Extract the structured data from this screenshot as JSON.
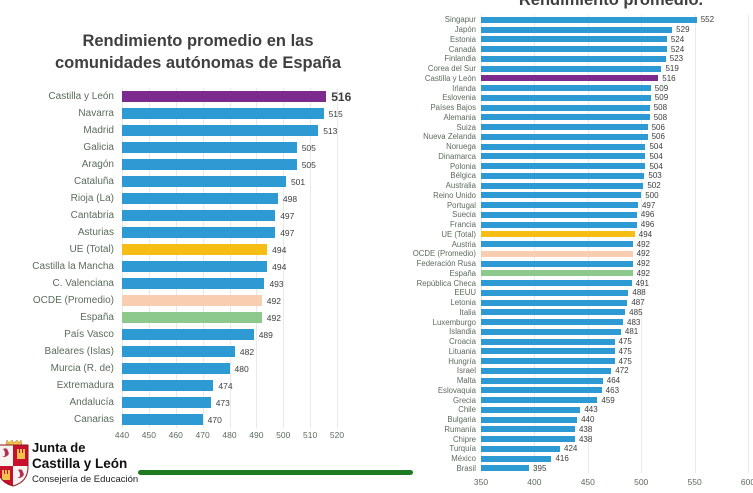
{
  "colors": {
    "bar_default": "#2d9ad3",
    "bar_castilla": "#7d2a8f",
    "bar_ue": "#f6be15",
    "bar_ocde": "#f9cdb0",
    "bar_espana": "#8dc98d",
    "grid": "#e9e9e9",
    "title_text": "#3f3f3f",
    "label_text": "#5c6c5c",
    "value_text": "#3d3d3d",
    "logo_rule_green": "#1e7a20",
    "shield_red": "#c8102e",
    "shield_gold": "#f2c14e"
  },
  "logo": {
    "line1": "Junta de",
    "line2": "Castilla y León",
    "line3": "Consejería de Educación"
  },
  "chart_data": [
    {
      "type": "bar",
      "orientation": "horizontal",
      "title": "Rendimiento promedio en las comunidades autónomas de España",
      "xlim": [
        440,
        520
      ],
      "xticks": [
        440,
        450,
        460,
        470,
        480,
        490,
        500,
        510,
        520
      ],
      "grid": true,
      "legend": "none",
      "emphasized_category": "Castilla y León",
      "categories": [
        "Castilla y León",
        "Navarra",
        "Madrid",
        "Galicia",
        "Aragón",
        "Cataluña",
        "Rioja (La)",
        "Cantabria",
        "Asturias",
        "UE (Total)",
        "Castilla la Mancha",
        "C. Valenciana",
        "OCDE (Promedio)",
        "España",
        "País Vasco",
        "Baleares (Islas)",
        "Murcia (R. de)",
        "Extremadura",
        "Andalucía",
        "Canarias"
      ],
      "values": [
        516,
        515,
        513,
        505,
        505,
        501,
        498,
        497,
        497,
        494,
        494,
        493,
        492,
        492,
        489,
        482,
        480,
        474,
        473,
        470
      ],
      "color_overrides": {
        "Castilla y León": "#7d2a8f",
        "UE (Total)": "#f6be15",
        "OCDE (Promedio)": "#f9cdb0",
        "España": "#8dc98d"
      }
    },
    {
      "type": "bar",
      "orientation": "horizontal",
      "title": "Rendimiento promedio.",
      "title_clipped_at_top": true,
      "xlim": [
        350,
        600
      ],
      "xticks": [
        350,
        400,
        450,
        500,
        550,
        600
      ],
      "grid": true,
      "legend": "none",
      "categories": [
        "Singapur",
        "Japón",
        "Estonia",
        "Canadá",
        "Finlandia",
        "Corea del Sur",
        "Castilla y León",
        "Irlanda",
        "Eslovenia",
        "Países Bajos",
        "Alemania",
        "Suiza",
        "Nueva Zelanda",
        "Noruega",
        "Dinamarca",
        "Polonia",
        "Bélgica",
        "Australia",
        "Reino Unido",
        "Portugal",
        "Suecia",
        "Francia",
        "UE (Total)",
        "Austria",
        "OCDE (Promedio)",
        "Federación Rusa",
        "España",
        "República Checa",
        "EEUU",
        "Letonia",
        "Italia",
        "Luxemburgo",
        "Islandia",
        "Croacia",
        "Lituania",
        "Hungría",
        "Israel",
        "Malta",
        "Eslovaquia",
        "Grecia",
        "Chile",
        "Bulgaria",
        "Rumanía",
        "Chipre",
        "Turquía",
        "México",
        "Brasil"
      ],
      "values": [
        552,
        529,
        524,
        524,
        523,
        519,
        516,
        509,
        509,
        508,
        508,
        506,
        506,
        504,
        504,
        504,
        503,
        502,
        500,
        497,
        496,
        496,
        494,
        492,
        492,
        492,
        492,
        491,
        488,
        487,
        485,
        483,
        481,
        475,
        475,
        475,
        472,
        464,
        463,
        459,
        443,
        440,
        438,
        438,
        424,
        416,
        395
      ],
      "color_overrides": {
        "Castilla y León": "#7d2a8f",
        "UE (Total)": "#f6be15",
        "OCDE (Promedio)": "#f9cdb0",
        "España": "#8dc98d"
      }
    }
  ]
}
